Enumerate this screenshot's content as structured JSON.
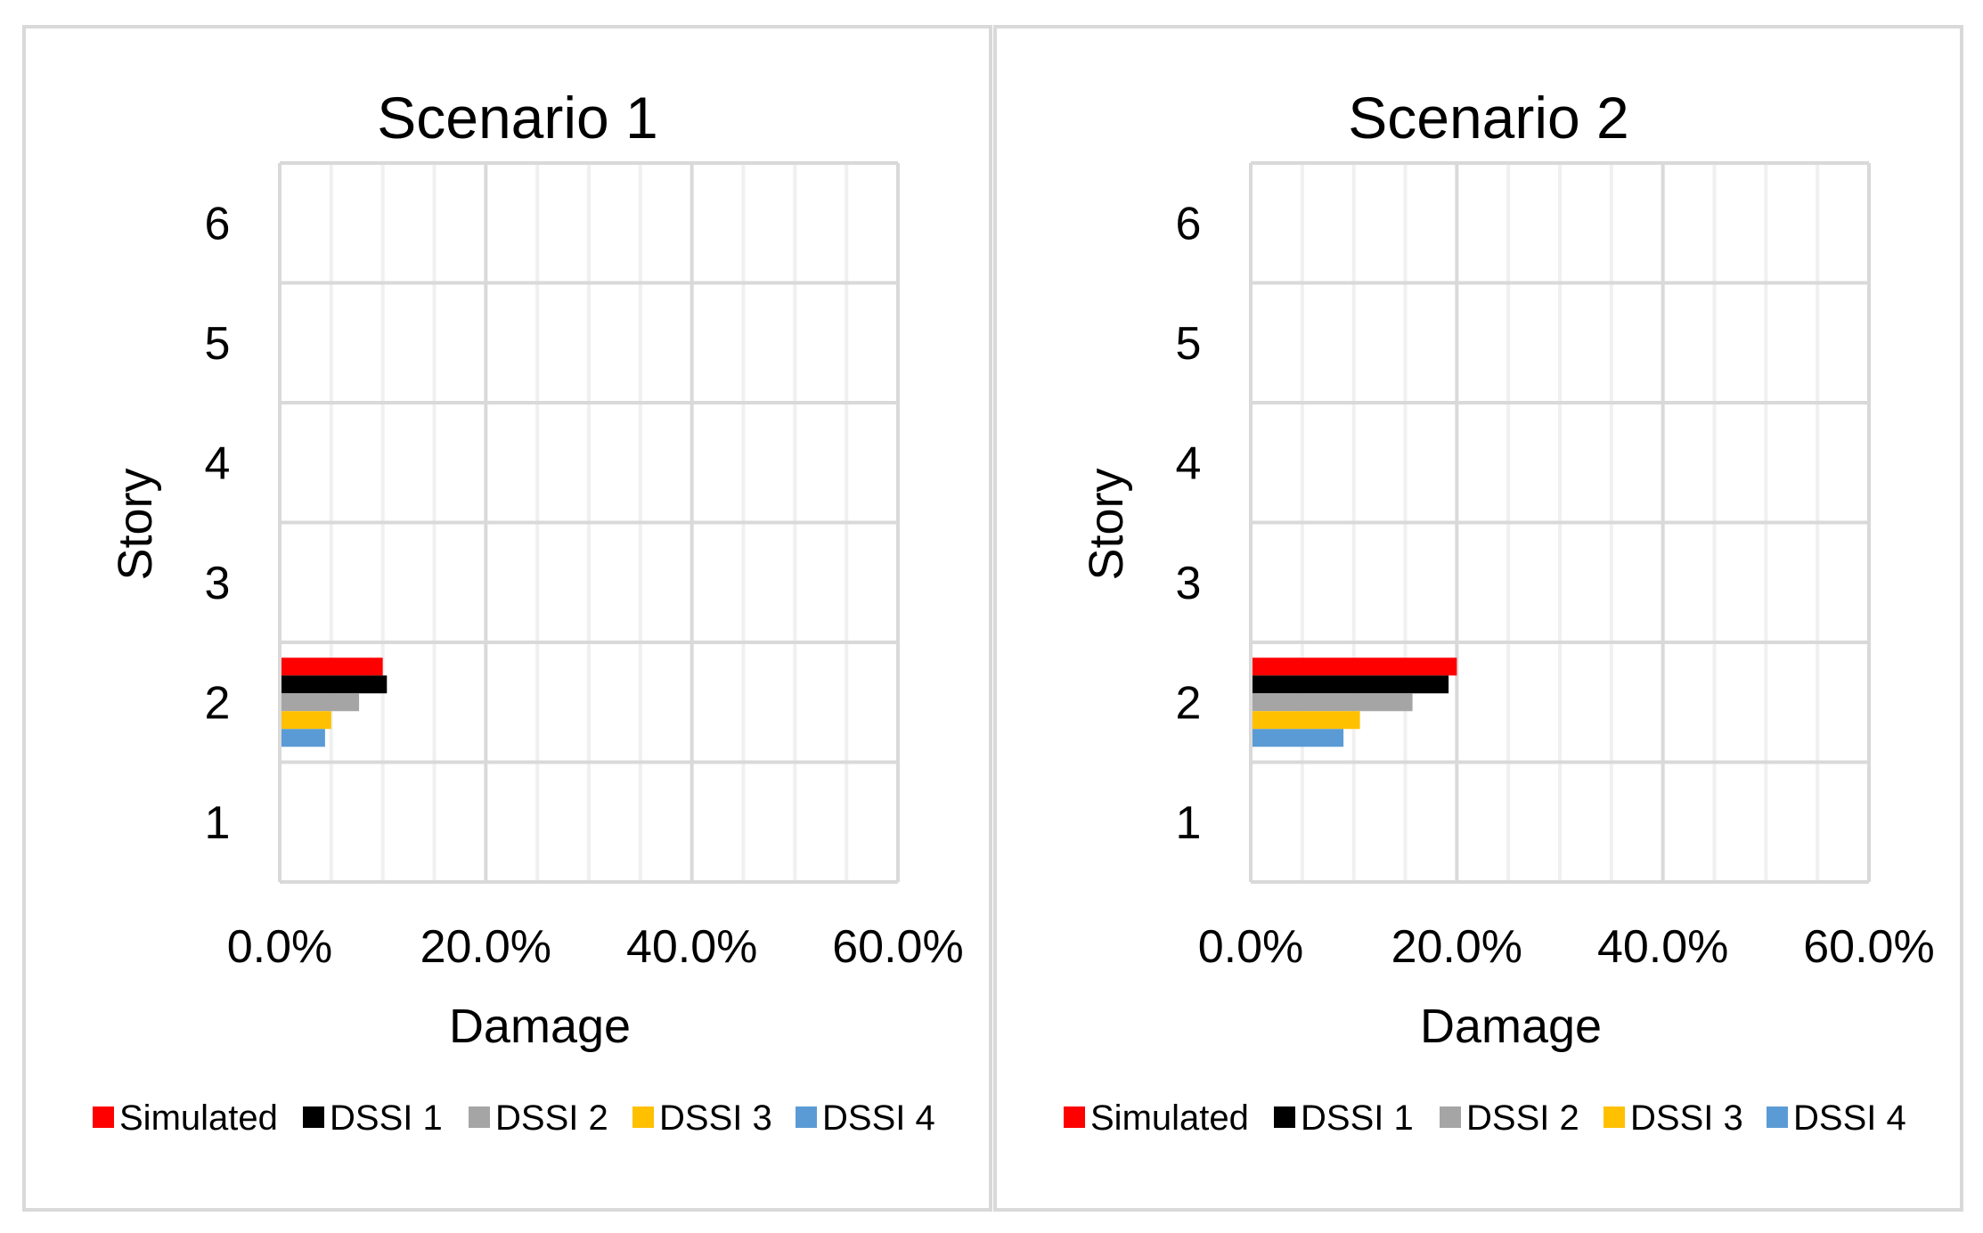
{
  "chart_data": [
    {
      "type": "bar",
      "orientation": "horizontal",
      "title": "Scenario 1",
      "xlabel": "Damage",
      "ylabel": "Story",
      "categories": [
        "1",
        "2",
        "3",
        "4",
        "5",
        "6"
      ],
      "xlim": [
        0,
        60
      ],
      "x_ticks": [
        "0.0%",
        "20.0%",
        "40.0%",
        "60.0%"
      ],
      "grid": true,
      "legend_position": "bottom",
      "series": [
        {
          "name": "Simulated",
          "color": "#ff0000",
          "values": [
            0,
            10.0,
            0,
            0,
            0,
            0
          ]
        },
        {
          "name": "DSSI 1",
          "color": "#000000",
          "values": [
            0,
            10.4,
            0,
            0,
            0,
            0
          ]
        },
        {
          "name": "DSSI 2",
          "color": "#a5a5a5",
          "values": [
            0,
            7.7,
            0,
            0,
            0,
            0
          ]
        },
        {
          "name": "DSSI 3",
          "color": "#ffc000",
          "values": [
            0,
            5.0,
            0,
            0,
            0,
            0
          ]
        },
        {
          "name": "DSSI 4",
          "color": "#5b9bd5",
          "values": [
            0,
            4.4,
            0,
            0,
            0,
            0
          ]
        }
      ]
    },
    {
      "type": "bar",
      "orientation": "horizontal",
      "title": "Scenario 2",
      "xlabel": "Damage",
      "ylabel": "Story",
      "categories": [
        "1",
        "2",
        "3",
        "4",
        "5",
        "6"
      ],
      "xlim": [
        0,
        60
      ],
      "x_ticks": [
        "0.0%",
        "20.0%",
        "40.0%",
        "60.0%"
      ],
      "grid": true,
      "legend_position": "bottom",
      "series": [
        {
          "name": "Simulated",
          "color": "#ff0000",
          "values": [
            0,
            20.0,
            0,
            0,
            0,
            0
          ]
        },
        {
          "name": "DSSI 1",
          "color": "#000000",
          "values": [
            0,
            19.2,
            0,
            0,
            0,
            0
          ]
        },
        {
          "name": "DSSI 2",
          "color": "#a5a5a5",
          "values": [
            0,
            15.7,
            0,
            0,
            0,
            0
          ]
        },
        {
          "name": "DSSI 3",
          "color": "#ffc000",
          "values": [
            0,
            10.6,
            0,
            0,
            0,
            0
          ]
        },
        {
          "name": "DSSI 4",
          "color": "#5b9bd5",
          "values": [
            0,
            9.0,
            0,
            0,
            0,
            0
          ]
        }
      ]
    }
  ]
}
